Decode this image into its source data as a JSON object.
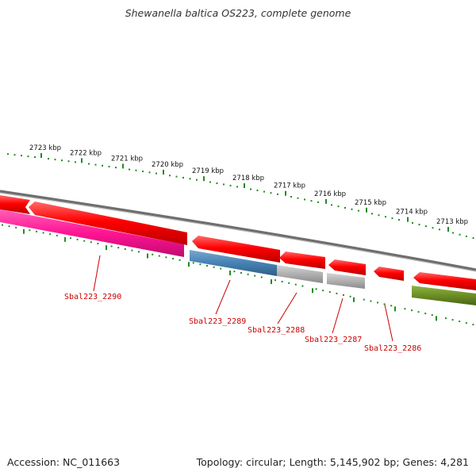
{
  "title": "Shewanella baltica OS223, complete genome",
  "footer": {
    "accession": "Accession: NC_011663",
    "summary": "Topology: circular; Length: 5,145,902 bp; Genes: 4,281"
  },
  "colors": {
    "label_red": "#cc0000",
    "gene_red": "#ee0000",
    "gene_pink": "#ff1493",
    "gene_blue": "#4682b4",
    "gene_gray": "#aaaaaa",
    "gene_olive": "#6b8e23",
    "tick_green": "#228b22",
    "backbone": "#777777"
  },
  "kbp_labels": [
    "2723 kbp",
    "2722 kbp",
    "2721 kbp",
    "2720 kbp",
    "2719 kbp",
    "2718 kbp",
    "2717 kbp",
    "2716 kbp",
    "2715 kbp",
    "2714 kbp",
    "2713 kbp"
  ],
  "gene_labels": [
    "Sbal223_2290",
    "Sbal223_2289",
    "Sbal223_2288",
    "Sbal223_2287",
    "Sbal223_2286"
  ]
}
